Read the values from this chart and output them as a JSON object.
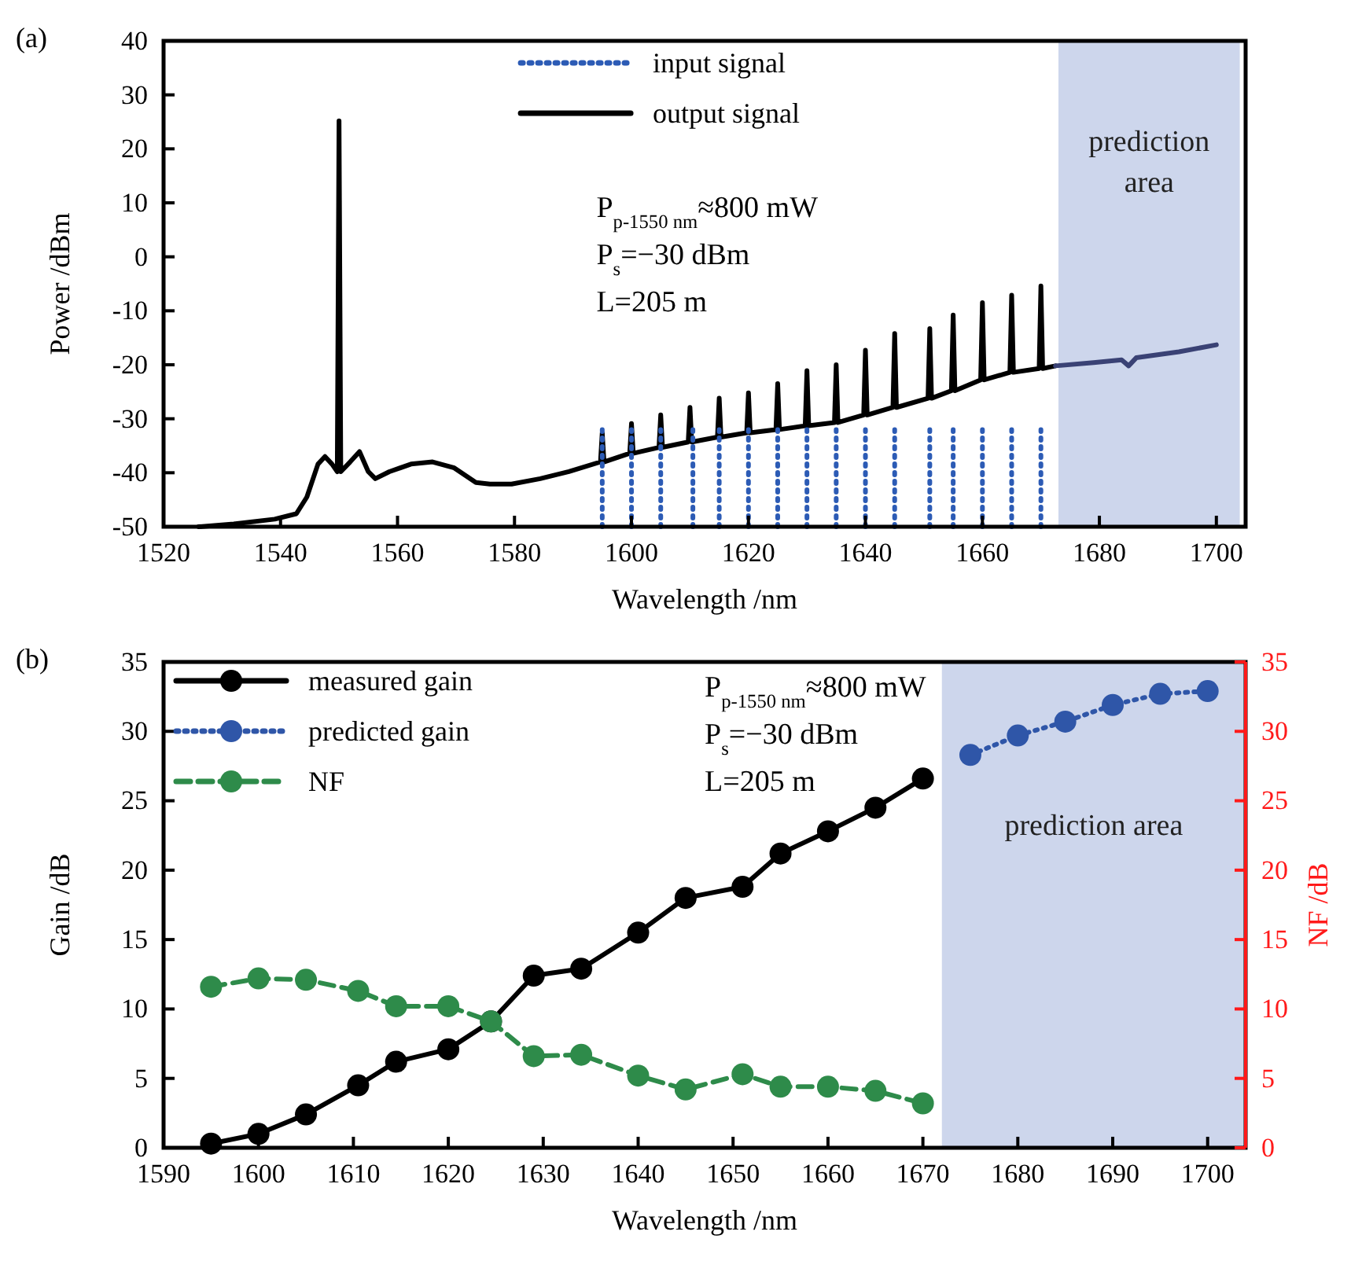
{
  "chart_data": [
    {
      "type": "line",
      "xlabel": "Wavelength /nm",
      "ylabel": "Power /dBm",
      "xlim": [
        1520,
        1705
      ],
      "ylim": [
        -50,
        40
      ],
      "xticks": [
        1520,
        1540,
        1560,
        1580,
        1600,
        1620,
        1640,
        1660,
        1680,
        1700
      ],
      "yticks": [
        -50,
        -40,
        -30,
        -20,
        -10,
        0,
        10,
        20,
        30,
        40
      ],
      "legend": "top",
      "annotations": [
        "(a)",
        "P$_{p-1550 nm}$≈800 mW",
        "P$_{s}$=−30 dBm",
        "L=205 m"
      ],
      "bands": [
        {
          "axis": "x",
          "from": 1673,
          "to": 1704,
          "label": "prediction area",
          "color": "#c8d2ea"
        }
      ],
      "series": [
        {
          "name": "input signal",
          "color": "#2c5bb5",
          "line_style": "dotted",
          "x": [
            1595,
            1595,
            null,
            1600,
            1600,
            null,
            1605,
            1605,
            null,
            1610.5,
            1610.5,
            null,
            1615,
            1615,
            null,
            1620,
            1620,
            null,
            1625,
            1625,
            null,
            1630,
            1630,
            null,
            1635,
            1635,
            null,
            1640,
            1640,
            null,
            1645,
            1645,
            null,
            1651,
            1651,
            null,
            1655,
            1655,
            null,
            1660,
            1660,
            null,
            1665,
            1665,
            null,
            1670,
            1670
          ],
          "values": [
            -50,
            -32,
            null,
            -50,
            -32,
            null,
            -50,
            -32,
            null,
            -50,
            -32,
            null,
            -50,
            -32,
            null,
            -50,
            -32,
            null,
            -50,
            -32,
            null,
            -50,
            -32,
            null,
            -50,
            -32,
            null,
            -50,
            -32,
            null,
            -50,
            -32,
            null,
            -50,
            -32,
            null,
            -50,
            -32,
            null,
            -50,
            -32,
            null,
            -50,
            -32,
            null,
            -50,
            -32
          ]
        },
        {
          "name": "output signal",
          "color": "#000000",
          "line_style": "solid",
          "x": [
            1526,
            1532,
            1539,
            1542.7,
            1544.5,
            1546.4,
            1547.6,
            1548.8,
            1549.7,
            1550,
            1550.3,
            1551.9,
            1553.5,
            1555,
            1556.2,
            1558.6,
            1562.3,
            1566,
            1569.7,
            1573.4,
            1575.8,
            1579.5,
            1584.4,
            1589.3,
            1594.7,
            1595,
            1595.3,
            1599.7,
            1600,
            1600.3,
            1604.7,
            1605,
            1605.3,
            1609.7,
            1610,
            1610.3,
            1614.7,
            1615,
            1615.3,
            1619.7,
            1620,
            1620.3,
            1624.7,
            1625,
            1625.3,
            1629.7,
            1630,
            1630.3,
            1634.7,
            1635,
            1635.3,
            1639.7,
            1640,
            1640.3,
            1644.7,
            1645,
            1645.3,
            1650.7,
            1651,
            1651.3,
            1654.7,
            1655,
            1655.3,
            1659.7,
            1660,
            1660.3,
            1664.7,
            1665,
            1665.3,
            1669.7,
            1670,
            1670.3,
            1672.5
          ],
          "values": [
            -50,
            -49.5,
            -48.6,
            -47.6,
            -44.5,
            -38.4,
            -37,
            -38.4,
            -39.8,
            25.2,
            -39.8,
            -38,
            -36.1,
            -39.8,
            -41.1,
            -39.8,
            -38.4,
            -38,
            -39.1,
            -41.8,
            -42.1,
            -42.1,
            -41.1,
            -39.8,
            -38,
            -32.6,
            -38,
            -36.4,
            -30.9,
            -36.4,
            -35.3,
            -29.3,
            -35.3,
            -34.3,
            -27.9,
            -34.3,
            -33.4,
            -26.2,
            -33.4,
            -32.6,
            -25.2,
            -32.6,
            -32,
            -23.5,
            -32,
            -31.3,
            -21.1,
            -31.3,
            -30.7,
            -20,
            -30.7,
            -29.3,
            -17.3,
            -29.3,
            -27.9,
            -14.2,
            -27.9,
            -26.2,
            -13.3,
            -26.2,
            -24.8,
            -10.8,
            -24.8,
            -22.8,
            -8.5,
            -22.8,
            -21.4,
            -7.1,
            -21.4,
            -20.7,
            -5.4,
            -20.7,
            -20.2
          ]
        },
        {
          "color": "#3a4275",
          "line_style": "solid",
          "x": [
            1672.5,
            1679,
            1683.8,
            1685,
            1686.3,
            1693.6,
            1700
          ],
          "values": [
            -20.2,
            -19.6,
            -19.1,
            -20.2,
            -18.7,
            -17.6,
            -16.3
          ]
        }
      ]
    },
    {
      "type": "line",
      "xlabel": "Wavelength /nm",
      "ylabel": "Gain /dB",
      "y2label": "NF /dB",
      "xlim": [
        1590,
        1704
      ],
      "ylim": [
        0,
        35
      ],
      "y2lim": [
        0,
        35
      ],
      "xticks": [
        1590,
        1600,
        1610,
        1620,
        1630,
        1640,
        1650,
        1660,
        1670,
        1680,
        1690,
        1700
      ],
      "yticks": [
        0,
        5,
        10,
        15,
        20,
        25,
        30,
        35
      ],
      "y2ticks": [
        0,
        5,
        10,
        15,
        20,
        25,
        30,
        35
      ],
      "legend": "top left",
      "marker": "circle",
      "annotations": [
        "(b)",
        "P$_{p-1550 nm}$≈800 mW",
        "P$_{s}$=−30 dBm",
        "L=205 m"
      ],
      "bands": [
        {
          "axis": "x",
          "from": 1672,
          "to": 1704,
          "label": "prediction area",
          "color": "#c8d2ea"
        }
      ],
      "series": [
        {
          "name": "measured gain",
          "color": "#000000",
          "line_style": "solid",
          "x": [
            1595,
            1600,
            1605,
            1610.5,
            1614.5,
            1620,
            1624.5,
            1629,
            1634,
            1640,
            1645,
            1651,
            1655,
            1660,
            1665,
            1670
          ],
          "values": [
            0.3,
            1.0,
            2.4,
            4.5,
            6.2,
            7.1,
            9.1,
            12.4,
            12.9,
            15.5,
            18.0,
            18.8,
            21.2,
            22.8,
            24.5,
            26.6
          ]
        },
        {
          "name": "predicted gain",
          "color": "#2f56a8",
          "line_style": "dotted",
          "x": [
            1675,
            1680,
            1685,
            1690,
            1695,
            1700
          ],
          "values": [
            28.3,
            29.7,
            30.7,
            31.9,
            32.7,
            32.9
          ]
        },
        {
          "name": "NF",
          "color": "#2e8b4a",
          "line_style": "dashed",
          "axis": "y2",
          "x": [
            1595,
            1600,
            1605,
            1610.5,
            1614.5,
            1620,
            1624.5,
            1629,
            1634,
            1640,
            1645,
            1651,
            1655,
            1660,
            1665,
            1670
          ],
          "values": [
            11.6,
            12.2,
            12.1,
            11.3,
            10.2,
            10.2,
            9.1,
            6.6,
            6.7,
            5.2,
            4.2,
            5.3,
            4.4,
            4.4,
            4.1,
            3.2
          ]
        }
      ]
    }
  ]
}
